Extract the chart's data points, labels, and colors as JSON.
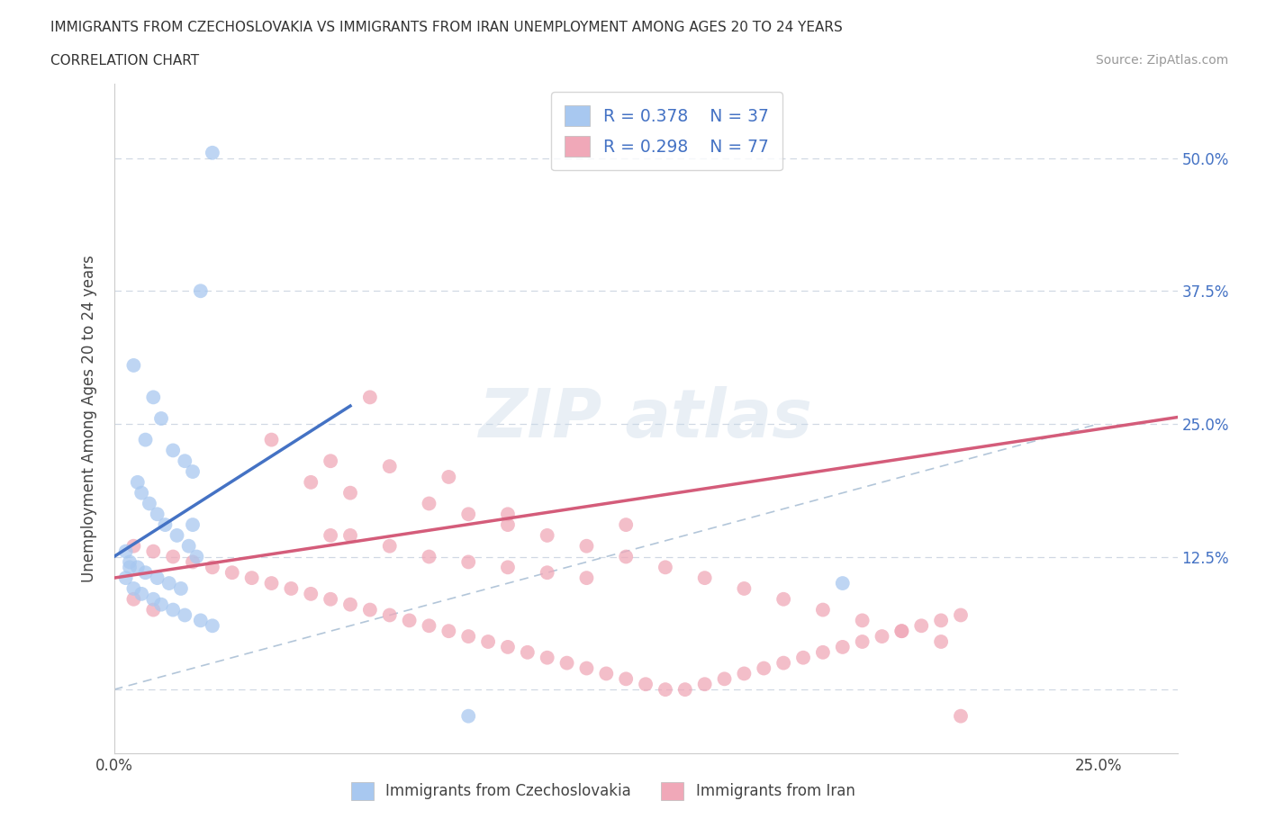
{
  "title_line1": "IMMIGRANTS FROM CZECHOSLOVAKIA VS IMMIGRANTS FROM IRAN UNEMPLOYMENT AMONG AGES 20 TO 24 YEARS",
  "title_line2": "CORRELATION CHART",
  "source_text": "Source: ZipAtlas.com",
  "ylabel": "Unemployment Among Ages 20 to 24 years",
  "legend_label1": "Immigrants from Czechoslovakia",
  "legend_label2": "Immigrants from Iran",
  "R1": 0.378,
  "N1": 37,
  "R2": 0.298,
  "N2": 77,
  "color1": "#a8c8f0",
  "color2": "#f0a8b8",
  "line_color1": "#4472c4",
  "line_color2": "#d45c7a",
  "ref_line_color": "#a0b8d0",
  "xlim": [
    0.0,
    0.27
  ],
  "ylim": [
    -0.06,
    0.57
  ],
  "ytick_vals": [
    0.0,
    0.125,
    0.25,
    0.375,
    0.5
  ],
  "ytick_labels": [
    "",
    "12.5%",
    "25.0%",
    "37.5%",
    "50.0%"
  ],
  "background_color": "#ffffff",
  "grid_color": "#d0d8e4",
  "scatter1_x": [
    0.025,
    0.022,
    0.005,
    0.01,
    0.012,
    0.008,
    0.015,
    0.018,
    0.02,
    0.006,
    0.007,
    0.009,
    0.011,
    0.013,
    0.016,
    0.019,
    0.021,
    0.004,
    0.003,
    0.005,
    0.007,
    0.01,
    0.012,
    0.015,
    0.018,
    0.022,
    0.025,
    0.003,
    0.004,
    0.006,
    0.008,
    0.011,
    0.014,
    0.017,
    0.09,
    0.185,
    0.02
  ],
  "scatter1_y": [
    0.505,
    0.375,
    0.305,
    0.275,
    0.255,
    0.235,
    0.225,
    0.215,
    0.205,
    0.195,
    0.185,
    0.175,
    0.165,
    0.155,
    0.145,
    0.135,
    0.125,
    0.115,
    0.105,
    0.095,
    0.09,
    0.085,
    0.08,
    0.075,
    0.07,
    0.065,
    0.06,
    0.13,
    0.12,
    0.115,
    0.11,
    0.105,
    0.1,
    0.095,
    -0.025,
    0.1,
    0.155
  ],
  "scatter2_x": [
    0.065,
    0.04,
    0.055,
    0.07,
    0.085,
    0.05,
    0.06,
    0.08,
    0.09,
    0.1,
    0.11,
    0.12,
    0.13,
    0.14,
    0.15,
    0.16,
    0.17,
    0.18,
    0.19,
    0.2,
    0.21,
    0.005,
    0.01,
    0.015,
    0.02,
    0.025,
    0.03,
    0.035,
    0.04,
    0.045,
    0.05,
    0.055,
    0.06,
    0.065,
    0.07,
    0.075,
    0.08,
    0.085,
    0.09,
    0.095,
    0.1,
    0.105,
    0.11,
    0.115,
    0.12,
    0.125,
    0.13,
    0.135,
    0.14,
    0.145,
    0.15,
    0.155,
    0.16,
    0.165,
    0.17,
    0.175,
    0.18,
    0.185,
    0.19,
    0.195,
    0.2,
    0.205,
    0.21,
    0.215,
    0.1,
    0.13,
    0.055,
    0.07,
    0.08,
    0.09,
    0.1,
    0.11,
    0.12,
    0.005,
    0.01,
    0.215,
    0.06
  ],
  "scatter2_y": [
    0.275,
    0.235,
    0.215,
    0.21,
    0.2,
    0.195,
    0.185,
    0.175,
    0.165,
    0.155,
    0.145,
    0.135,
    0.125,
    0.115,
    0.105,
    0.095,
    0.085,
    0.075,
    0.065,
    0.055,
    0.045,
    0.135,
    0.13,
    0.125,
    0.12,
    0.115,
    0.11,
    0.105,
    0.1,
    0.095,
    0.09,
    0.085,
    0.08,
    0.075,
    0.07,
    0.065,
    0.06,
    0.055,
    0.05,
    0.045,
    0.04,
    0.035,
    0.03,
    0.025,
    0.02,
    0.015,
    0.01,
    0.005,
    0.0,
    0.0,
    0.005,
    0.01,
    0.015,
    0.02,
    0.025,
    0.03,
    0.035,
    0.04,
    0.045,
    0.05,
    0.055,
    0.06,
    0.065,
    0.07,
    0.165,
    0.155,
    0.145,
    0.135,
    0.125,
    0.12,
    0.115,
    0.11,
    0.105,
    0.085,
    0.075,
    -0.025,
    0.145
  ],
  "trend1_x0": 0.0,
  "trend1_y0": 0.125,
  "trend1_x1": 0.055,
  "trend1_y1": 0.255,
  "trend2_x0": 0.0,
  "trend2_y0": 0.105,
  "trend2_x1": 0.25,
  "trend2_y1": 0.245
}
